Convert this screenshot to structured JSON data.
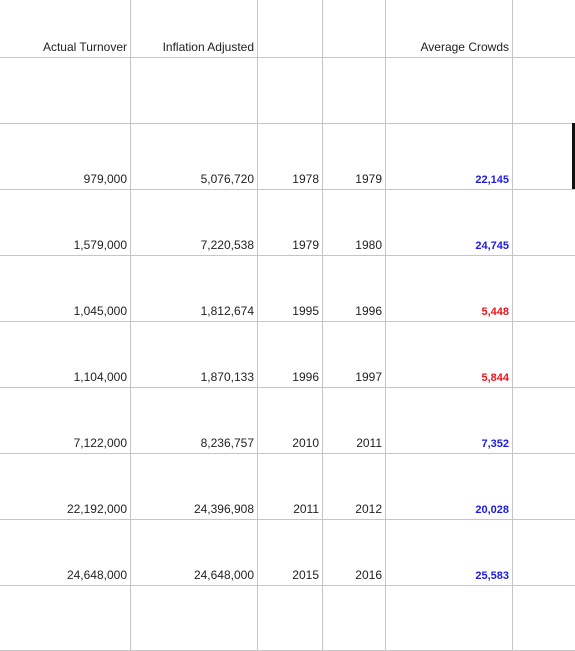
{
  "table": {
    "headers": {
      "actual_turnover": "Actual Turnover",
      "inflation_adjusted": "Inflation Adjusted",
      "average_crowds": "Average Crowds"
    },
    "rows": [
      {
        "actual_turnover": "979,000",
        "inflation_adjusted": "5,076,720",
        "year_from": "1978",
        "year_to": "1979",
        "average_crowds": "22,145",
        "crowd_color": "#1c1ce0"
      },
      {
        "actual_turnover": "1,579,000",
        "inflation_adjusted": "7,220,538",
        "year_from": "1979",
        "year_to": "1980",
        "average_crowds": "24,745",
        "crowd_color": "#1c1ce0"
      },
      {
        "actual_turnover": "1,045,000",
        "inflation_adjusted": "1,812,674",
        "year_from": "1995",
        "year_to": "1996",
        "average_crowds": "5,448",
        "crowd_color": "#e8161c"
      },
      {
        "actual_turnover": "1,104,000",
        "inflation_adjusted": "1,870,133",
        "year_from": "1996",
        "year_to": "1997",
        "average_crowds": "5,844",
        "crowd_color": "#e8161c"
      },
      {
        "actual_turnover": "7,122,000",
        "inflation_adjusted": "8,236,757",
        "year_from": "2010",
        "year_to": "2011",
        "average_crowds": "7,352",
        "crowd_color": "#1c1ce0"
      },
      {
        "actual_turnover": "22,192,000",
        "inflation_adjusted": "24,396,908",
        "year_from": "2011",
        "year_to": "2012",
        "average_crowds": "20,028",
        "crowd_color": "#1c1ce0"
      },
      {
        "actual_turnover": "24,648,000",
        "inflation_adjusted": "24,648,000",
        "year_from": "2015",
        "year_to": "2016",
        "average_crowds": "25,583",
        "crowd_color": "#1c1ce0"
      }
    ]
  }
}
